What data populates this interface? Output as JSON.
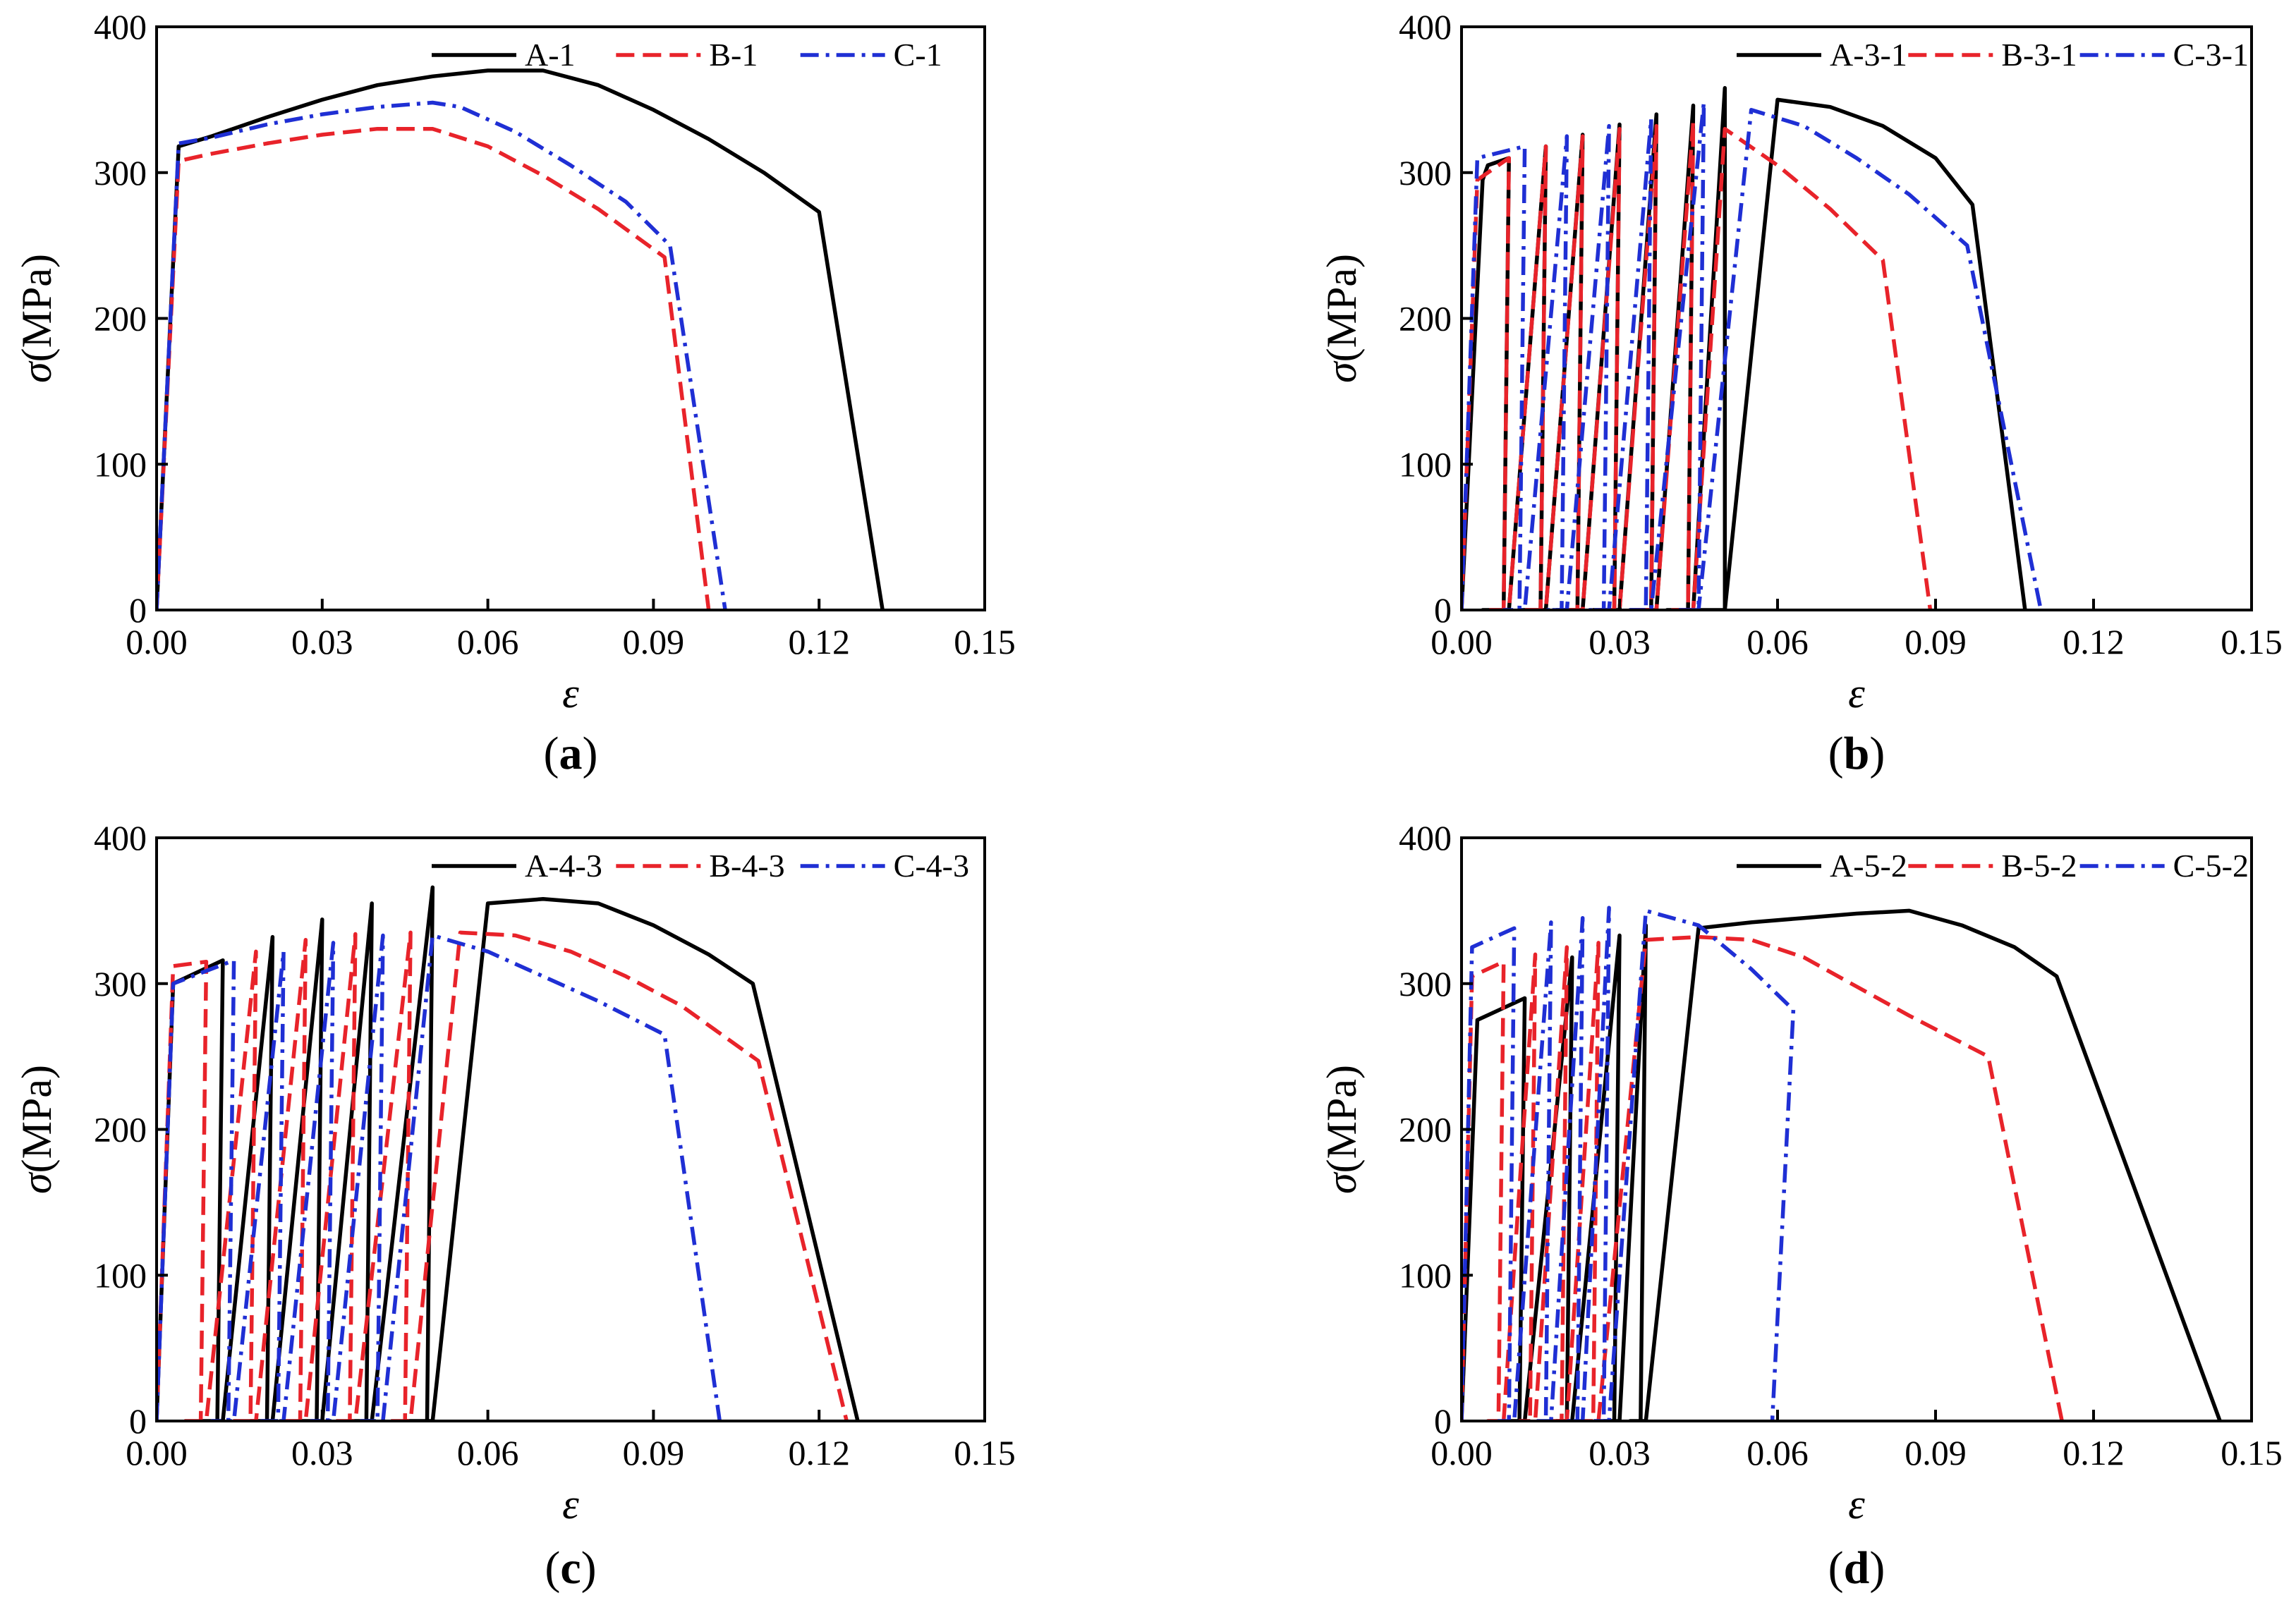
{
  "figure": {
    "colors": {
      "A": "#000000",
      "B": "#e8232a",
      "C": "#1f2fd4"
    }
  },
  "chart_data": [
    {
      "type": "line",
      "panel_label": {
        "open": "(",
        "letter": "a",
        "close": ")"
      },
      "xlabel": "ε",
      "ylabel": {
        "symbol": "σ",
        "unit": "(MPa)"
      },
      "xlim": [
        0,
        0.15
      ],
      "ylim": [
        0,
        400
      ],
      "x_ticks": [
        "0.00",
        "0.03",
        "0.06",
        "0.09",
        "0.12",
        "0.15"
      ],
      "y_ticks": [
        "0",
        "100",
        "200",
        "300",
        "400"
      ],
      "legend": {
        "position": "top-right",
        "entries": [
          "A-1",
          "B-1",
          "C-1"
        ]
      },
      "series": [
        {
          "name": "A-1",
          "color": "#000000",
          "dash": "solid",
          "x": [
            0,
            0.004,
            0.01,
            0.02,
            0.03,
            0.04,
            0.05,
            0.06,
            0.07,
            0.08,
            0.09,
            0.1,
            0.11,
            0.12,
            0.1315
          ],
          "y": [
            0,
            318,
            325,
            338,
            350,
            360,
            366,
            370,
            370,
            360,
            343,
            323,
            300,
            273,
            0
          ]
        },
        {
          "name": "B-1",
          "color": "#e8232a",
          "dash": "dash",
          "x": [
            0,
            0.004,
            0.01,
            0.02,
            0.03,
            0.04,
            0.05,
            0.06,
            0.07,
            0.08,
            0.092,
            0.1
          ],
          "y": [
            0,
            308,
            313,
            320,
            326,
            330,
            330,
            318,
            298,
            275,
            242,
            0
          ]
        },
        {
          "name": "C-1",
          "color": "#1f2fd4",
          "dash": "dashdot",
          "x": [
            0,
            0.004,
            0.01,
            0.02,
            0.03,
            0.04,
            0.05,
            0.055,
            0.065,
            0.075,
            0.085,
            0.093,
            0.103
          ],
          "y": [
            0,
            320,
            324,
            333,
            340,
            345,
            348,
            345,
            328,
            305,
            280,
            250,
            0
          ]
        }
      ]
    },
    {
      "type": "line",
      "panel_label": {
        "open": "(",
        "letter": "b",
        "close": ")"
      },
      "xlabel": "ε",
      "ylabel": {
        "symbol": "σ",
        "unit": "(MPa)"
      },
      "xlim": [
        0,
        0.15
      ],
      "ylim": [
        0,
        400
      ],
      "x_ticks": [
        "0.00",
        "0.03",
        "0.06",
        "0.09",
        "0.12",
        "0.15"
      ],
      "y_ticks": [
        "0",
        "100",
        "200",
        "300",
        "400"
      ],
      "legend": {
        "position": "top-right",
        "entries": [
          "A-3-1",
          "B-3-1",
          "C-3-1"
        ]
      },
      "series": [
        {
          "name": "A-3-1",
          "color": "#000000",
          "dash": "solid",
          "x": [
            0.0,
            0.004,
            0.005,
            0.009,
            0.008,
            0.004,
            0.009,
            0.016,
            0.015,
            0.011,
            0.016,
            0.023,
            0.022,
            0.018,
            0.023,
            0.03,
            0.029,
            0.025,
            0.03,
            0.037,
            0.036,
            0.032,
            0.037,
            0.044,
            0.043,
            0.039,
            0.044,
            0.05,
            0.05,
            0.045,
            0.05,
            0.06,
            0.07,
            0.08,
            0.09,
            0.097,
            0.107
          ],
          "y": [
            0,
            295,
            305,
            310,
            0,
            0,
            0,
            318,
            0,
            0,
            0,
            326,
            0,
            0,
            0,
            333,
            0,
            0,
            0,
            340,
            0,
            0,
            0,
            346,
            0,
            0,
            0,
            358,
            0,
            0,
            0,
            350,
            345,
            332,
            310,
            278,
            0
          ]
        },
        {
          "name": "B-3-1",
          "color": "#e8232a",
          "dash": "dash",
          "x": [
            0.0,
            0.003,
            0.009,
            0.008,
            0.005,
            0.009,
            0.016,
            0.015,
            0.012,
            0.016,
            0.023,
            0.022,
            0.019,
            0.023,
            0.03,
            0.029,
            0.026,
            0.03,
            0.037,
            0.036,
            0.033,
            0.037,
            0.044,
            0.043,
            0.04,
            0.044,
            0.05,
            0.06,
            0.07,
            0.08,
            0.089
          ],
          "y": [
            0,
            295,
            310,
            0,
            0,
            0,
            318,
            0,
            0,
            0,
            325,
            0,
            0,
            0,
            330,
            0,
            0,
            0,
            332,
            0,
            0,
            0,
            335,
            0,
            0,
            0,
            330,
            305,
            275,
            240,
            0
          ]
        },
        {
          "name": "C-3-1",
          "color": "#1f2fd4",
          "dash": "dashdot",
          "x": [
            0.0,
            0.003,
            0.012,
            0.011,
            0.008,
            0.012,
            0.02,
            0.019,
            0.016,
            0.02,
            0.028,
            0.027,
            0.024,
            0.028,
            0.036,
            0.035,
            0.032,
            0.036,
            0.046,
            0.045,
            0.041,
            0.045,
            0.055,
            0.065,
            0.075,
            0.085,
            0.096,
            0.11
          ],
          "y": [
            0,
            310,
            318,
            0,
            0,
            0,
            325,
            0,
            0,
            0,
            332,
            0,
            0,
            0,
            337,
            0,
            0,
            0,
            348,
            0,
            0,
            0,
            343,
            332,
            310,
            285,
            250,
            0
          ]
        }
      ]
    },
    {
      "type": "line",
      "panel_label": {
        "open": "(",
        "letter": "c",
        "close": ")"
      },
      "xlabel": "ε",
      "ylabel": {
        "symbol": "σ",
        "unit": "(MPa)"
      },
      "xlim": [
        0,
        0.15
      ],
      "ylim": [
        0,
        400
      ],
      "x_ticks": [
        "0.00",
        "0.03",
        "0.06",
        "0.09",
        "0.12",
        "0.15"
      ],
      "y_ticks": [
        "0",
        "100",
        "200",
        "300",
        "400"
      ],
      "legend": {
        "position": "top-right",
        "entries": [
          "A-4-3",
          "B-4-3",
          "C-4-3"
        ]
      },
      "series": [
        {
          "name": "A-4-3",
          "color": "#000000",
          "dash": "solid",
          "x": [
            0.0,
            0.003,
            0.012,
            0.011,
            0.008,
            0.012,
            0.021,
            0.02,
            0.017,
            0.021,
            0.03,
            0.029,
            0.026,
            0.03,
            0.039,
            0.038,
            0.035,
            0.039,
            0.05,
            0.049,
            0.045,
            0.05,
            0.06,
            0.07,
            0.08,
            0.09,
            0.1,
            0.108,
            0.127
          ],
          "y": [
            0,
            300,
            316,
            0,
            0,
            0,
            332,
            0,
            0,
            0,
            344,
            0,
            0,
            0,
            355,
            0,
            0,
            0,
            366,
            0,
            0,
            0,
            355,
            358,
            355,
            340,
            320,
            300,
            0
          ]
        },
        {
          "name": "B-4-3",
          "color": "#e8232a",
          "dash": "dash",
          "x": [
            0.0,
            0.003,
            0.009,
            0.008,
            0.005,
            0.009,
            0.018,
            0.017,
            0.014,
            0.018,
            0.027,
            0.026,
            0.023,
            0.027,
            0.036,
            0.035,
            0.032,
            0.036,
            0.046,
            0.045,
            0.042,
            0.046,
            0.055,
            0.065,
            0.075,
            0.085,
            0.095,
            0.109,
            0.125
          ],
          "y": [
            0,
            312,
            315,
            0,
            0,
            0,
            322,
            0,
            0,
            0,
            330,
            0,
            0,
            0,
            334,
            0,
            0,
            0,
            335,
            0,
            0,
            0,
            335,
            333,
            322,
            305,
            285,
            247,
            0
          ]
        },
        {
          "name": "C-4-3",
          "color": "#1f2fd4",
          "dash": "dashdot",
          "x": [
            0.0,
            0.003,
            0.014,
            0.013,
            0.01,
            0.014,
            0.023,
            0.022,
            0.019,
            0.023,
            0.032,
            0.031,
            0.028,
            0.032,
            0.041,
            0.04,
            0.037,
            0.041,
            0.05,
            0.06,
            0.07,
            0.08,
            0.092,
            0.102
          ],
          "y": [
            0,
            300,
            316,
            0,
            0,
            0,
            322,
            0,
            0,
            0,
            328,
            0,
            0,
            0,
            333,
            0,
            0,
            0,
            333,
            322,
            305,
            288,
            265,
            0
          ]
        }
      ]
    },
    {
      "type": "line",
      "panel_label": {
        "open": "(",
        "letter": "d",
        "close": ")"
      },
      "xlabel": "ε",
      "ylabel": {
        "symbol": "σ",
        "unit": "(MPa)"
      },
      "xlim": [
        0,
        0.15
      ],
      "ylim": [
        0,
        400
      ],
      "x_ticks": [
        "0.00",
        "0.03",
        "0.06",
        "0.09",
        "0.12",
        "0.15"
      ],
      "y_ticks": [
        "0",
        "100",
        "200",
        "300",
        "400"
      ],
      "legend": {
        "position": "top-right",
        "entries": [
          "A-5-2",
          "B-5-2",
          "C-5-2"
        ]
      },
      "series": [
        {
          "name": "A-5-2",
          "color": "#000000",
          "dash": "solid",
          "x": [
            0.0,
            0.003,
            0.012,
            0.011,
            0.009,
            0.012,
            0.021,
            0.02,
            0.018,
            0.021,
            0.03,
            0.029,
            0.027,
            0.03,
            0.035,
            0.034,
            0.032,
            0.035,
            0.045,
            0.055,
            0.065,
            0.075,
            0.085,
            0.095,
            0.105,
            0.113,
            0.144
          ],
          "y": [
            0,
            275,
            290,
            0,
            0,
            0,
            318,
            0,
            0,
            0,
            333,
            0,
            0,
            0,
            340,
            0,
            0,
            0,
            338,
            342,
            345,
            348,
            350,
            340,
            325,
            305,
            0
          ]
        },
        {
          "name": "B-5-2",
          "color": "#e8232a",
          "dash": "dash",
          "x": [
            0.0,
            0.002,
            0.008,
            0.007,
            0.005,
            0.008,
            0.014,
            0.013,
            0.011,
            0.014,
            0.02,
            0.019,
            0.017,
            0.02,
            0.026,
            0.025,
            0.023,
            0.026,
            0.035,
            0.045,
            0.055,
            0.065,
            0.075,
            0.085,
            0.1,
            0.114
          ],
          "y": [
            0,
            305,
            315,
            0,
            0,
            0,
            320,
            0,
            0,
            0,
            325,
            0,
            0,
            0,
            328,
            0,
            0,
            0,
            330,
            332,
            330,
            318,
            298,
            278,
            250,
            0
          ]
        },
        {
          "name": "C-5-2",
          "color": "#1f2fd4",
          "dash": "dashdot",
          "x": [
            0.0,
            0.002,
            0.01,
            0.009,
            0.007,
            0.01,
            0.017,
            0.016,
            0.014,
            0.017,
            0.023,
            0.022,
            0.02,
            0.023,
            0.028,
            0.027,
            0.025,
            0.028,
            0.035,
            0.045,
            0.055,
            0.063,
            0.059
          ],
          "y": [
            0,
            325,
            338,
            0,
            0,
            0,
            342,
            0,
            0,
            0,
            345,
            0,
            0,
            0,
            352,
            0,
            0,
            0,
            350,
            340,
            310,
            282,
            0
          ]
        }
      ]
    }
  ]
}
